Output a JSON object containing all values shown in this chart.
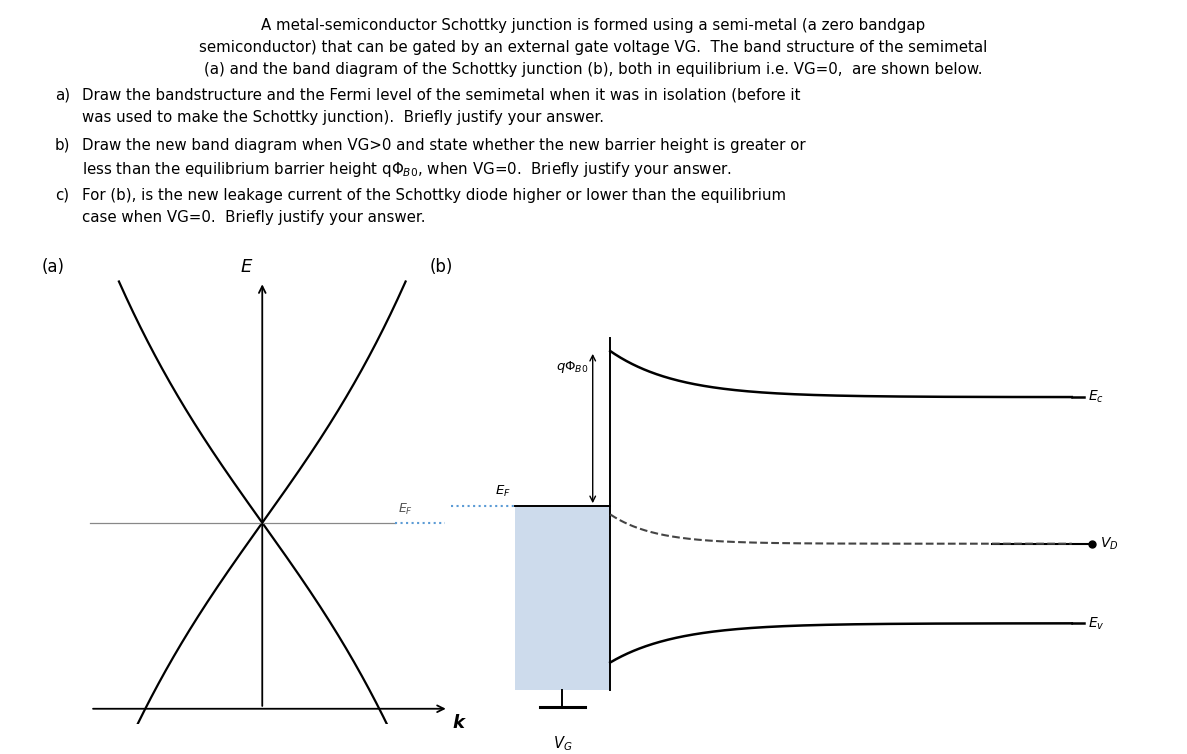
{
  "bg_color": "#ffffff",
  "line_color": "#000000",
  "dotted_blue_color": "#5b9bd5",
  "dashed_color": "#444444",
  "fill_color": "#b8cce4",
  "fill_alpha": 0.7,
  "label_a": "(a)",
  "label_b": "(b)",
  "label_E": "E",
  "label_k": "k",
  "label_EF_left": "$E_F$",
  "label_EF_right": "$E_F$",
  "label_Ec": "$E_c$",
  "label_Ev": "$E_v$",
  "label_VD": "$V_D$",
  "label_VG": "$V_G$"
}
